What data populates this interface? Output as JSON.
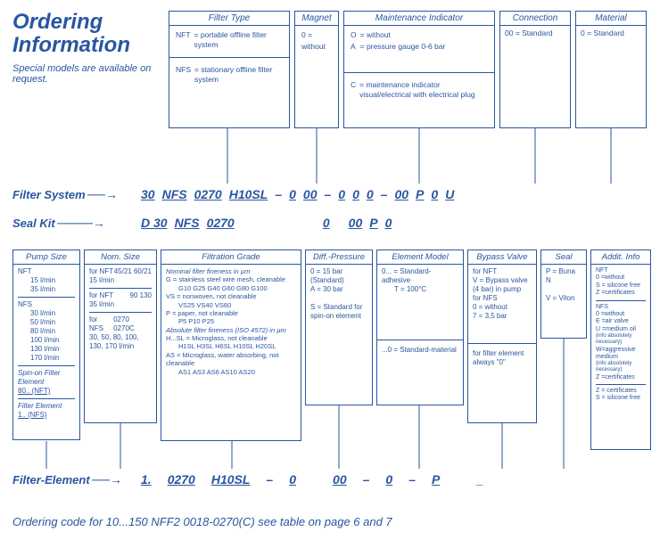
{
  "header": {
    "title_line1": "Ordering",
    "title_line2": "Information",
    "subtitle": "Special models are available on request."
  },
  "topBoxes": {
    "filterType": {
      "title": "Filter Type",
      "rows": [
        [
          "NFT",
          "= portable offline filter system"
        ],
        [
          "NFS",
          "= stationary offline filter system"
        ]
      ]
    },
    "magnet": {
      "title": "Magnet",
      "rows": [
        [
          "0 =",
          "without"
        ]
      ]
    },
    "maintenance": {
      "title": "Maintenance Indicator",
      "rows1": [
        [
          "O",
          "= without"
        ],
        [
          "A",
          "= pressure gauge 0-6 bar"
        ]
      ],
      "rows2": [
        [
          "C",
          "= maintenance indicator visual/electrical with electrical plug"
        ]
      ]
    },
    "connection": {
      "title": "Connection",
      "rows": [
        [
          "00 = Standard"
        ]
      ]
    },
    "material": {
      "title": "Material",
      "rows": [
        [
          "0 = Standard"
        ]
      ]
    }
  },
  "lines": {
    "filterSystem": {
      "label": "Filter System",
      "parts": [
        "30",
        "NFS",
        "0270",
        "H10SL",
        "–",
        "0",
        "00",
        "–",
        "0",
        "0",
        "0",
        "–",
        "00",
        "P",
        "0",
        "U"
      ]
    },
    "sealKit": {
      "label": "Seal Kit",
      "parts": [
        "D 30",
        "NFS",
        "0270",
        "",
        "",
        "",
        "",
        "",
        "",
        "",
        "0",
        "",
        "00",
        "P",
        "0",
        ""
      ]
    },
    "filterElement": {
      "label": "Filter-Element",
      "parts": [
        "1.",
        "0270",
        "H10SL",
        "–",
        "0",
        "",
        "00",
        "–",
        "0",
        "–",
        "P",
        "",
        "_"
      ]
    }
  },
  "midBoxes": {
    "pumpSize": {
      "title": "Pump Size",
      "nft_label": "NFT",
      "nft_lines": [
        "15 l/min",
        "35 l/min"
      ],
      "nfs_label": "NFS",
      "nfs_lines": [
        "30 l/min",
        "50 l/min",
        "80 l/min",
        "100 l/min",
        "130 l/min",
        "170 l/min"
      ],
      "spinon_title": "Spin-on Filter Element",
      "spinon_val": "80.. (NFT)",
      "fe_title": "Filter Element",
      "fe_val": "1.. (NFS)"
    },
    "nomSize": {
      "title": "Nom. Size",
      "g1": {
        "label": "for NFT",
        "sub": "15 l/min",
        "vals": "45/21  60/21"
      },
      "g2": {
        "label": "for NFT",
        "sub": "35 l/min",
        "vals": "90  130"
      },
      "g3": {
        "label": "for NFS",
        "sub": "30, 50, 80, 100, 130, 170 l/min",
        "vals": "0270 0270C"
      }
    },
    "filtration": {
      "title": "Filtration Grade",
      "intro": "Nominal filter fineness in µm",
      "g": "G    = stainless steel wire mesh, cleanable",
      "g_list": "G10 G25 G40 G60 G80 G100",
      "vs": "VS   = nonwoven, not cleanable",
      "vs_list": "VS25 VS40 VS60",
      "p": "P    = paper, not cleanable",
      "p_list": "P5 P10 P25",
      "abs": "Absolute filter fineness (ISO 4572) in µm",
      "hsl": "H...SL = Microglass, not cleanable",
      "hsl_list": "H1SL H3SL H6SL H10SL H20SL",
      "as": "AS   = Microglass, water absorbing, not cleanable",
      "as_list": "AS1 AS3 AS6 AS10 AS20"
    },
    "diffPressure": {
      "title": "Diff.-Pressure",
      "rows": [
        "0 = 15 bar (Standard)",
        "A = 30 bar",
        "",
        "S = Standard for spin-on element"
      ]
    },
    "elementModel": {
      "title": "Element Model",
      "rows1": [
        "0... = Standard-adhesive",
        "T = 100°C"
      ],
      "rows2": [
        "...0 = Standard-material"
      ]
    },
    "bypass": {
      "title": "Bypass Valve",
      "rows1": [
        "for NFT",
        "V = Bypass valve (4 bar) in pump",
        "for NFS",
        "0 = without",
        "7 = 3,5 bar"
      ],
      "rows2": [
        "for filter element always \"0\""
      ]
    },
    "seal": {
      "title": "Seal",
      "rows": [
        "P = Buna N",
        "",
        "V = Viton"
      ]
    },
    "addit": {
      "title": "Addit. Info",
      "nft_label": "NFT",
      "nft_rows": [
        "0 =without",
        "S = silicone free",
        "Z =certificates"
      ],
      "nfs_label": "NFS",
      "nfs_rows": [
        "0 =without",
        "E =air valve",
        "U =medium oil",
        "(info absolutely necessary)",
        "W=aggressive medium",
        "(info absolutely necessary)",
        "Z =certificates"
      ],
      "last_rows": [
        "Z = certificates",
        "S = silicone free"
      ]
    }
  },
  "footer": "Ordering code for 10...150 NFF2 0018-0270(C) see table on page 6 and 7"
}
